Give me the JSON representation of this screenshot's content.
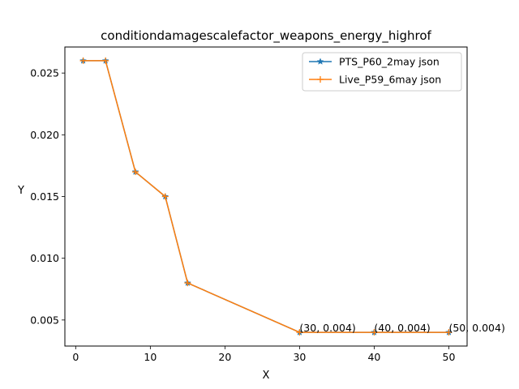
{
  "chart_data": {
    "type": "line",
    "title": "conditiondamagescalefactor_weapons_energy_highrof",
    "xlabel": "X",
    "ylabel": "Y",
    "xlim": [
      -1.45,
      52.45
    ],
    "ylim": [
      0.00289,
      0.02711
    ],
    "xticks": [
      0,
      10,
      20,
      30,
      40,
      50
    ],
    "xtick_labels": [
      "0",
      "10",
      "20",
      "30",
      "40",
      "50"
    ],
    "yticks": [
      0.005,
      0.01,
      0.015,
      0.02,
      0.025
    ],
    "ytick_labels": [
      "0.005",
      "0.010",
      "0.015",
      "0.020",
      "0.025"
    ],
    "legend_position": "top-right",
    "grid": false,
    "series": [
      {
        "name": "PTS_P60_2may json",
        "color": "#1f77b4",
        "marker": "star",
        "x": [
          1,
          4,
          8,
          12,
          15,
          30,
          40,
          50
        ],
        "y": [
          0.026,
          0.026,
          0.017,
          0.015,
          0.008,
          0.004,
          0.004,
          0.004
        ]
      },
      {
        "name": "Live_P59_6may json",
        "color": "#ff7f0e",
        "marker": "plus",
        "x": [
          1,
          4,
          8,
          12,
          15,
          30,
          40,
          50
        ],
        "y": [
          0.026,
          0.026,
          0.017,
          0.015,
          0.008,
          0.004,
          0.004,
          0.004
        ]
      }
    ],
    "annotations": [
      {
        "text": "(30, 0.004)",
        "x": 30,
        "y": 0.004
      },
      {
        "text": "(40, 0.004)",
        "x": 40,
        "y": 0.004
      },
      {
        "text": "(50, 0.004)",
        "x": 50,
        "y": 0.004
      }
    ]
  }
}
